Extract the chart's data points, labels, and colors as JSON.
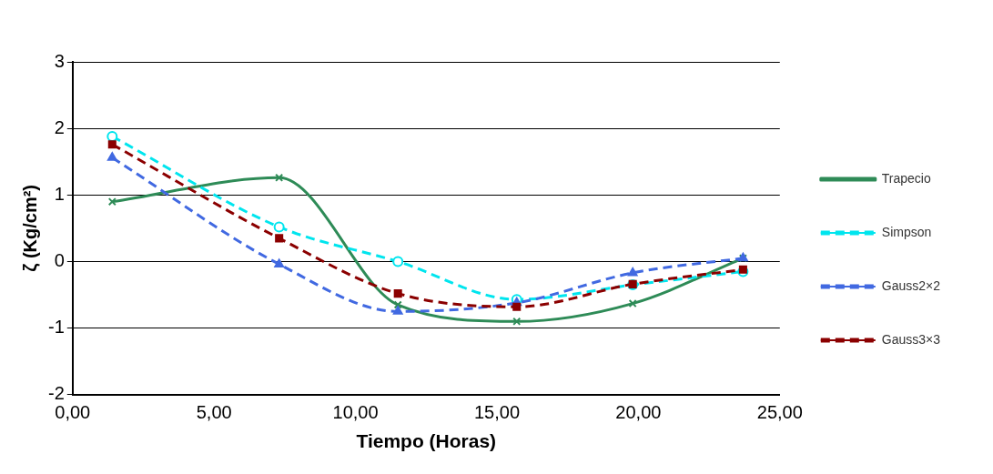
{
  "chart_data": {
    "type": "line",
    "xlabel": "Tiempo (Horas)",
    "ylabel": "ζ (Kg/cm²)",
    "xlim": [
      0,
      25
    ],
    "xticks": [
      {
        "value": 0,
        "label": "0,00"
      },
      {
        "value": 5,
        "label": "5,00"
      },
      {
        "value": 10,
        "label": "10,00"
      },
      {
        "value": 15,
        "label": "15,00"
      },
      {
        "value": 20,
        "label": "20,00"
      },
      {
        "value": 25,
        "label": "25,00"
      }
    ],
    "ylim": [
      -2,
      3
    ],
    "yticks": [
      -2,
      -1,
      0,
      1,
      2,
      3
    ],
    "grid": "y",
    "legend": "right",
    "x": [
      1.4,
      7.3,
      11.5,
      15.7,
      19.8,
      23.7
    ],
    "series": [
      {
        "name": "Trapecio",
        "color": "#2e8b57",
        "marker": "cross",
        "line_style": "solid",
        "values": [
          0.9,
          1.26,
          -0.65,
          -0.9,
          -0.63,
          0.05
        ]
      },
      {
        "name": "Simpson",
        "color": "#00e5ee",
        "marker": "circle",
        "line_style": "dashed",
        "values": [
          1.88,
          0.52,
          0.0,
          -0.57,
          -0.35,
          -0.15
        ]
      },
      {
        "name": "Gauss2×2",
        "color": "#4169e1",
        "marker": "triangle",
        "line_style": "dashed",
        "values": [
          1.56,
          -0.04,
          -0.75,
          -0.62,
          -0.17,
          0.05
        ]
      },
      {
        "name": "Gauss3×3",
        "color": "#8b0000",
        "marker": "square",
        "line_style": "dashed",
        "values": [
          1.76,
          0.35,
          -0.48,
          -0.68,
          -0.34,
          -0.12
        ]
      }
    ]
  }
}
